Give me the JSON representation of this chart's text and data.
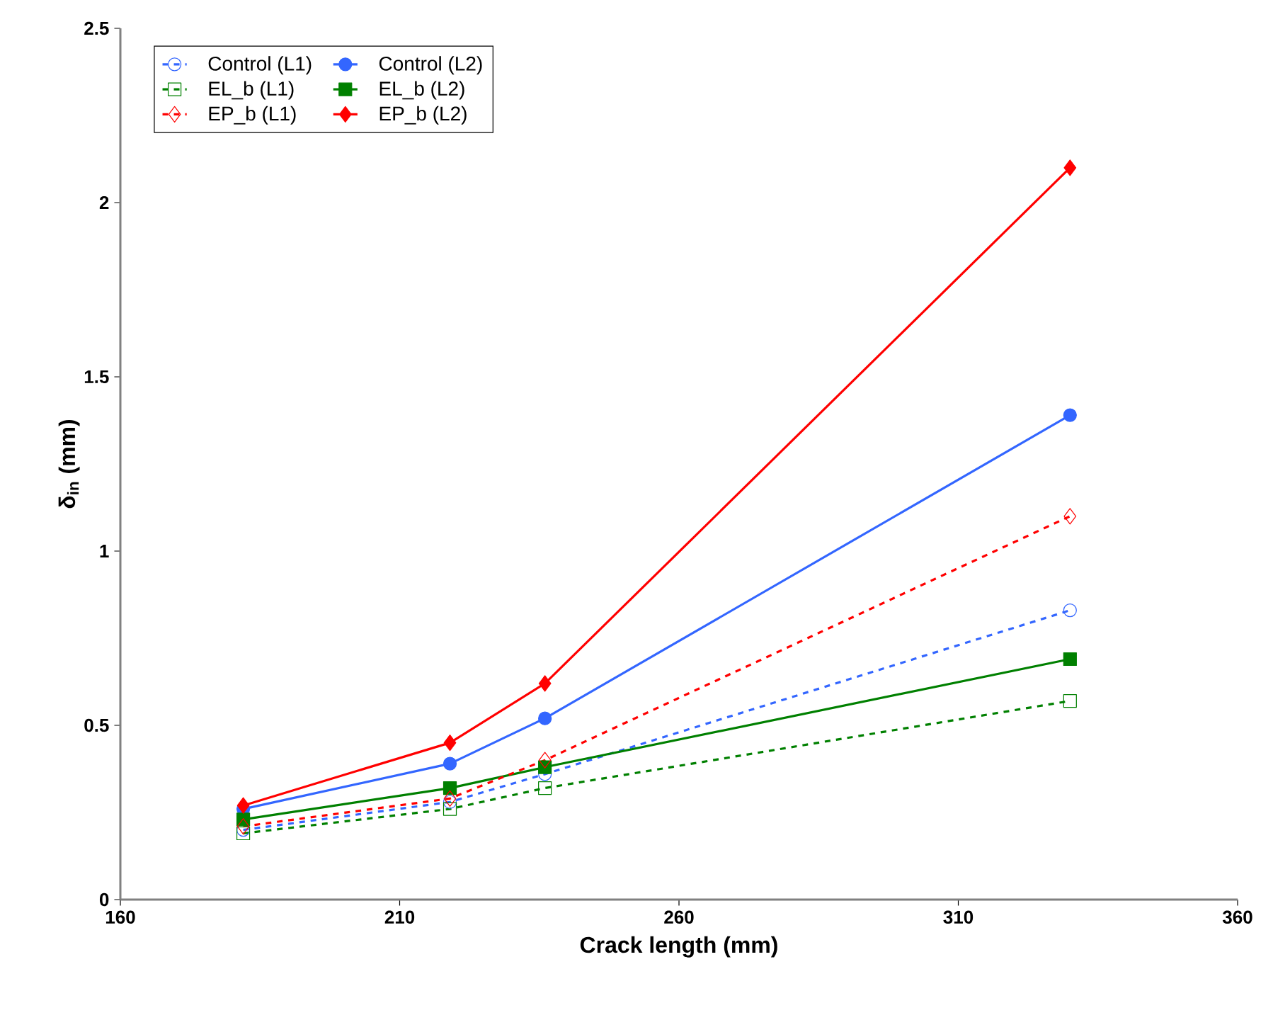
{
  "chart_data": {
    "type": "line",
    "xlabel": "Crack length (mm)",
    "ylabel": "δ$_{in}$ (mm)",
    "x": [
      182,
      219,
      236,
      330
    ],
    "series": [
      {
        "name": "Control (L1)",
        "color": "#3366ff",
        "values": [
          0.2,
          0.28,
          0.36,
          0.83
        ],
        "marker": "circle",
        "line_style": "dashed"
      },
      {
        "name": "Control (L2)",
        "color": "#3366ff",
        "values": [
          0.26,
          0.39,
          0.52,
          1.39
        ],
        "marker": "circle",
        "line_style": "solid"
      },
      {
        "name": "EL_b (L1)",
        "color": "#008000",
        "values": [
          0.19,
          0.26,
          0.32,
          0.57
        ],
        "marker": "square",
        "line_style": "dashed"
      },
      {
        "name": "EL_b (L2)",
        "color": "#008000",
        "values": [
          0.23,
          0.32,
          0.38,
          0.69
        ],
        "marker": "square",
        "line_style": "solid"
      },
      {
        "name": "EP_b (L1)",
        "color": "#ff0000",
        "values": [
          0.21,
          0.29,
          0.4,
          1.1
        ],
        "marker": "diamond",
        "line_style": "dashed"
      },
      {
        "name": "EP_b (L2)",
        "color": "#ff0000",
        "values": [
          0.27,
          0.45,
          0.62,
          2.1
        ],
        "marker": "diamond",
        "line_style": "solid"
      }
    ],
    "xlim": [
      160,
      360
    ],
    "xticks": [
      160,
      210,
      260,
      310,
      360
    ],
    "ylim": [
      0,
      2.5
    ],
    "yticks": [
      0,
      0.5,
      1,
      1.5,
      2,
      2.5
    ],
    "grid": false,
    "legend": "top left"
  }
}
